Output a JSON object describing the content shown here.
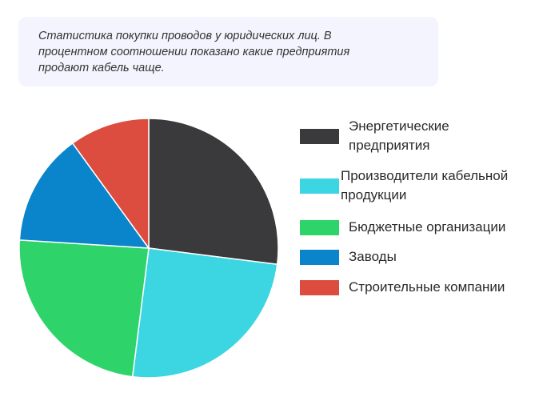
{
  "note": {
    "lines": [
      "Статистика покупки проводов у юридических лиц. В",
      "процентном соотношении показано какие предприятия",
      "продают кабель чаще."
    ]
  },
  "chart_data": {
    "type": "pie",
    "legend_position": "right",
    "series": [
      {
        "label_lines": [
          "Энергетические",
          "предприятия"
        ],
        "value": 27,
        "color": "#3a3a3c"
      },
      {
        "label_lines": [
          "Производители кабельной",
          "продукции"
        ],
        "value": 25,
        "color": "#3cd6e3"
      },
      {
        "label_lines": [
          "Бюджетные организации"
        ],
        "value": 24,
        "color": "#2ed469"
      },
      {
        "label_lines": [
          "Заводы"
        ],
        "value": 14,
        "color": "#0a84ca"
      },
      {
        "label_lines": [
          "Строительные компании"
        ],
        "value": 10,
        "color": "#dc4c3f"
      }
    ]
  }
}
